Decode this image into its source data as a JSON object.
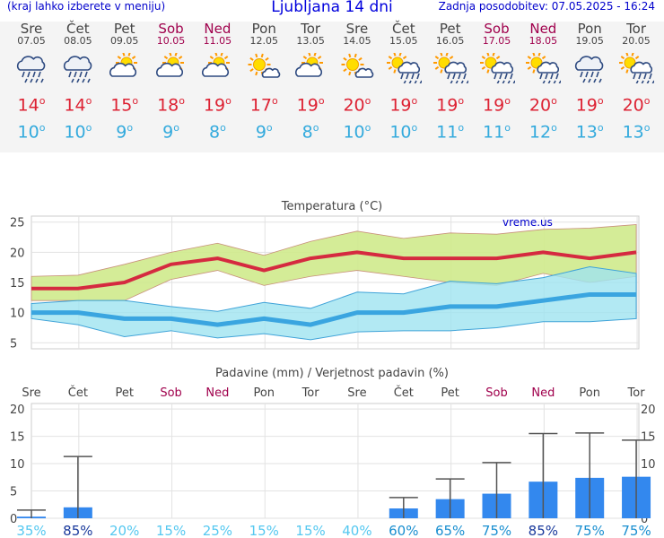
{
  "header": {
    "left": "(kraj lahko izberete v meniju)",
    "title": "Ljubljana 14 dni",
    "right": "Zadnja posodobitev: 07.05.2025 - 16:24"
  },
  "days": [
    {
      "name": "Sre",
      "date": "07.05",
      "weekend": false,
      "icon": "cloud-rain-icon",
      "tmax": "14",
      "tmin": "10"
    },
    {
      "name": "Čet",
      "date": "08.05",
      "weekend": false,
      "icon": "cloud-rain-icon",
      "tmax": "14",
      "tmin": "10"
    },
    {
      "name": "Pet",
      "date": "09.05",
      "weekend": false,
      "icon": "sun-cloud-icon",
      "tmax": "15",
      "tmin": "9"
    },
    {
      "name": "Sob",
      "date": "10.05",
      "weekend": true,
      "icon": "sun-cloud-icon",
      "tmax": "18",
      "tmin": "9"
    },
    {
      "name": "Ned",
      "date": "11.05",
      "weekend": true,
      "icon": "sun-cloud-icon",
      "tmax": "19",
      "tmin": "8"
    },
    {
      "name": "Pon",
      "date": "12.05",
      "weekend": false,
      "icon": "sun-small-cloud-icon",
      "tmax": "17",
      "tmin": "9"
    },
    {
      "name": "Tor",
      "date": "13.05",
      "weekend": false,
      "icon": "sun-cloud-icon",
      "tmax": "19",
      "tmin": "8"
    },
    {
      "name": "Sre",
      "date": "14.05",
      "weekend": false,
      "icon": "sun-small-cloud-icon",
      "tmax": "20",
      "tmin": "10"
    },
    {
      "name": "Čet",
      "date": "15.05",
      "weekend": false,
      "icon": "sun-rain-icon",
      "tmax": "19",
      "tmin": "10"
    },
    {
      "name": "Pet",
      "date": "16.05",
      "weekend": false,
      "icon": "sun-rain-icon",
      "tmax": "19",
      "tmin": "11"
    },
    {
      "name": "Sob",
      "date": "17.05",
      "weekend": true,
      "icon": "sun-rain-icon",
      "tmax": "19",
      "tmin": "11"
    },
    {
      "name": "Ned",
      "date": "18.05",
      "weekend": true,
      "icon": "sun-rain-icon",
      "tmax": "20",
      "tmin": "12"
    },
    {
      "name": "Pon",
      "date": "19.05",
      "weekend": false,
      "icon": "cloud-rain-icon",
      "tmax": "19",
      "tmin": "13"
    },
    {
      "name": "Tor",
      "date": "20.05",
      "weekend": false,
      "icon": "sun-rain-icon",
      "tmax": "20",
      "tmin": "13"
    }
  ],
  "colors": {
    "tmax": "#dd2233",
    "tmin": "#33aadd",
    "weekend": "#a0004c",
    "max_band": "#cfea8c",
    "min_band": "#9fe3f0",
    "precip_bar": "#3388ee"
  },
  "chart_data": [
    {
      "type": "line",
      "title": "Temperatura (°C)",
      "watermark": "vreme.us",
      "categories": [
        "07.05",
        "08.05",
        "09.05",
        "10.05",
        "11.05",
        "12.05",
        "13.05",
        "14.05",
        "15.05",
        "16.05",
        "17.05",
        "18.05",
        "19.05",
        "20.05"
      ],
      "ylim": [
        4,
        26
      ],
      "yticks": [
        5,
        10,
        15,
        20,
        25
      ],
      "grid": true,
      "series": [
        {
          "role": "max",
          "values": [
            14,
            14,
            15,
            18,
            19,
            17,
            19,
            20,
            19,
            19,
            19,
            20,
            19,
            20
          ],
          "band_low": [
            12,
            12,
            12,
            15.5,
            17,
            14.5,
            16,
            17,
            16,
            15,
            14.5,
            16.5,
            15,
            16
          ],
          "band_high": [
            16,
            16.2,
            18,
            20,
            21.5,
            19.5,
            21.8,
            23.5,
            22.3,
            23.2,
            23,
            23.8,
            24,
            24.6
          ]
        },
        {
          "role": "min",
          "values": [
            10,
            10,
            9,
            9,
            8,
            9,
            8,
            10,
            10,
            11,
            11,
            12,
            13,
            13
          ],
          "band_low": [
            9,
            8,
            6,
            7,
            5.8,
            6.5,
            5.5,
            6.8,
            7,
            7,
            7.5,
            8.5,
            8.5,
            9
          ],
          "band_high": [
            11.5,
            12,
            12,
            11,
            10.2,
            11.7,
            10.7,
            13.4,
            13.1,
            15.2,
            14.8,
            15.8,
            17.6,
            16.5
          ]
        }
      ]
    },
    {
      "type": "bar",
      "title": "Padavine (mm) / Verjetnost padavin (%)",
      "categories": [
        "Sre",
        "Čet",
        "Pet",
        "Sob",
        "Ned",
        "Pon",
        "Tor",
        "Sre",
        "Čet",
        "Pet",
        "Sob",
        "Ned",
        "Pon",
        "Tor"
      ],
      "weekend": [
        false,
        false,
        false,
        true,
        true,
        false,
        false,
        false,
        false,
        false,
        true,
        true,
        false,
        false
      ],
      "ylim": [
        0,
        21
      ],
      "yticks": [
        0,
        5,
        10,
        15,
        20
      ],
      "grid": true,
      "values": [
        0.3,
        2,
        0,
        0,
        0,
        0,
        0,
        0,
        1.8,
        3.5,
        4.5,
        6.7,
        7.4,
        7.6
      ],
      "max_values": [
        1.5,
        11.3,
        0,
        0,
        0,
        0,
        0,
        0,
        3.8,
        7.2,
        10.2,
        15.5,
        15.6,
        14.3
      ],
      "probability": [
        "35%",
        "85%",
        "20%",
        "15%",
        "25%",
        "15%",
        "15%",
        "40%",
        "60%",
        "65%",
        "75%",
        "85%",
        "75%",
        "75%"
      ]
    }
  ]
}
